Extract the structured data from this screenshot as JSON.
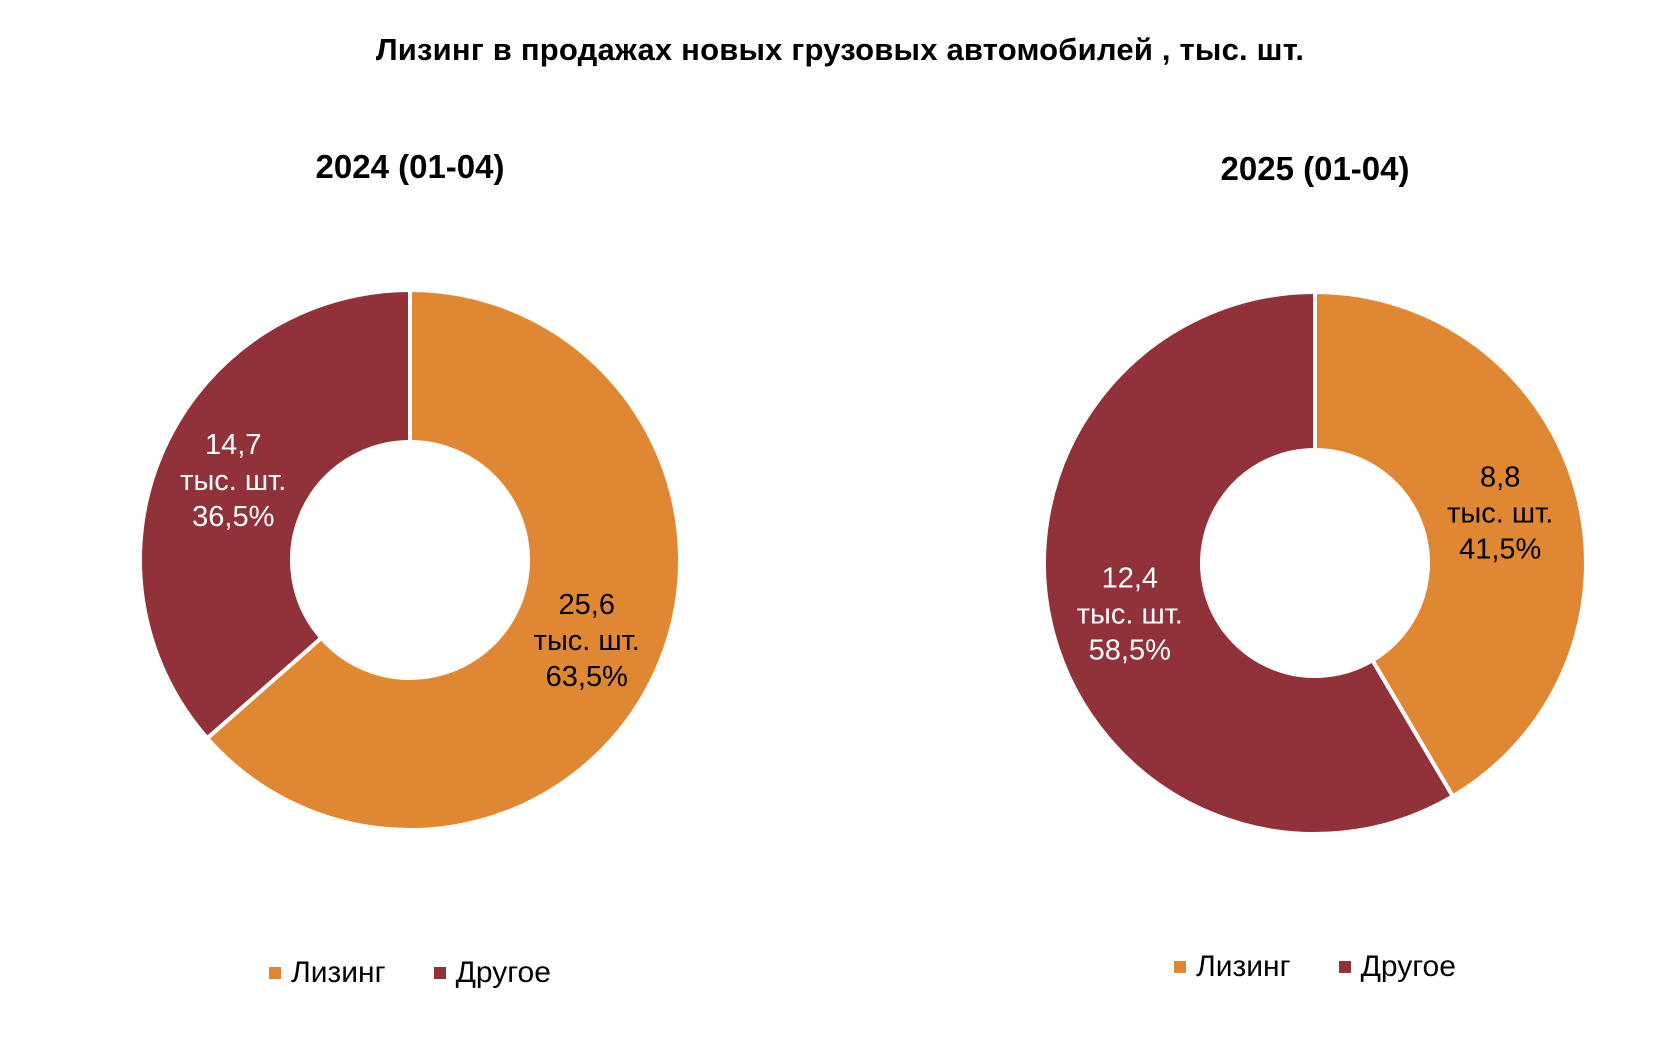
{
  "title": "Лизинг в продажах новых грузовых автомобилей , тыс. шт.",
  "colors": {
    "leasing": "#E08733",
    "other": "#91313A"
  },
  "legend": [
    {
      "label": "Лизинг",
      "color": "#E08733"
    },
    {
      "label": "Другое",
      "color": "#91313A"
    }
  ],
  "chart_data": [
    {
      "type": "pie",
      "title": "2024 (01-04)",
      "categories": [
        "Лизинг",
        "Другое"
      ],
      "values": [
        25.6,
        14.7
      ],
      "percents": [
        63.5,
        36.5
      ],
      "labels": [
        [
          "25,6",
          "тыс.  шт.",
          "63,5%"
        ],
        [
          "14,7",
          "тыс.  шт.",
          "36,5%"
        ]
      ]
    },
    {
      "type": "pie",
      "title": "2025 (01-04)",
      "categories": [
        "Лизинг",
        "Другое"
      ],
      "values": [
        8.8,
        12.4
      ],
      "percents": [
        41.5,
        58.5
      ],
      "labels": [
        [
          "8,8",
          "тыс.  шт.",
          "41,5%"
        ],
        [
          "12,4",
          "тыс.  шт.",
          "58,5%"
        ]
      ]
    }
  ]
}
